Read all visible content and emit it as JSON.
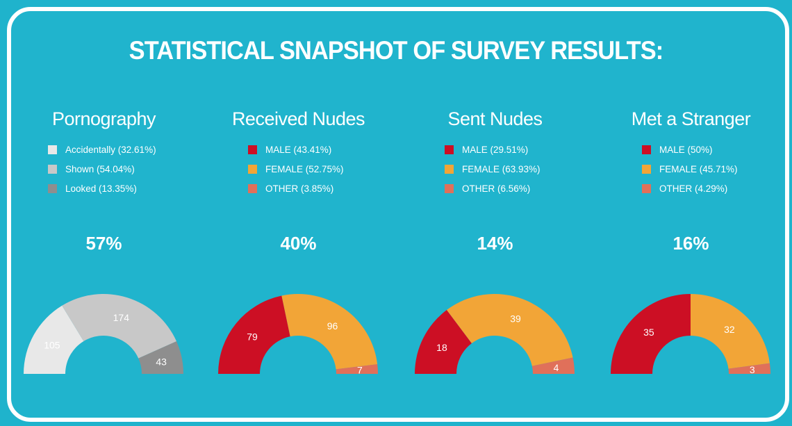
{
  "title": "STATISTICAL SNAPSHOT OF SURVEY RESULTS:",
  "colors": {
    "background": "#1fb3cc",
    "frame": "#ffffff"
  },
  "chart_data": [
    {
      "type": "pie",
      "title": "Pornography",
      "headline": "57%",
      "legend": [
        "Accidentally (32.61%)",
        "Shown (54.04%)",
        "Looked (13.35%)"
      ],
      "categories": [
        "Accidentally",
        "Shown",
        "Looked"
      ],
      "values": [
        105,
        174,
        43
      ],
      "colors": [
        "#e8e8e8",
        "#c8c8c8",
        "#8e8e8e"
      ]
    },
    {
      "type": "pie",
      "title": "Received Nudes",
      "headline": "40%",
      "legend": [
        "MALE (43.41%)",
        "FEMALE (52.75%)",
        "OTHER (3.85%)"
      ],
      "categories": [
        "MALE",
        "FEMALE",
        "OTHER"
      ],
      "values": [
        79,
        96,
        7
      ],
      "colors": [
        "#cc0f24",
        "#f2a537",
        "#e0705a"
      ]
    },
    {
      "type": "pie",
      "title": "Sent Nudes",
      "headline": "14%",
      "legend": [
        "MALE (29.51%)",
        "FEMALE (63.93%)",
        "OTHER (6.56%)"
      ],
      "categories": [
        "MALE",
        "FEMALE",
        "OTHER"
      ],
      "values": [
        18,
        39,
        4
      ],
      "colors": [
        "#cc0f24",
        "#f2a537",
        "#e0705a"
      ]
    },
    {
      "type": "pie",
      "title": "Met a Stranger",
      "headline": "16%",
      "legend": [
        "MALE (50%)",
        "FEMALE (45.71%)",
        "OTHER (4.29%)"
      ],
      "categories": [
        "MALE",
        "FEMALE",
        "OTHER"
      ],
      "values": [
        35,
        32,
        3
      ],
      "colors": [
        "#cc0f24",
        "#f2a537",
        "#e0705a"
      ]
    }
  ]
}
